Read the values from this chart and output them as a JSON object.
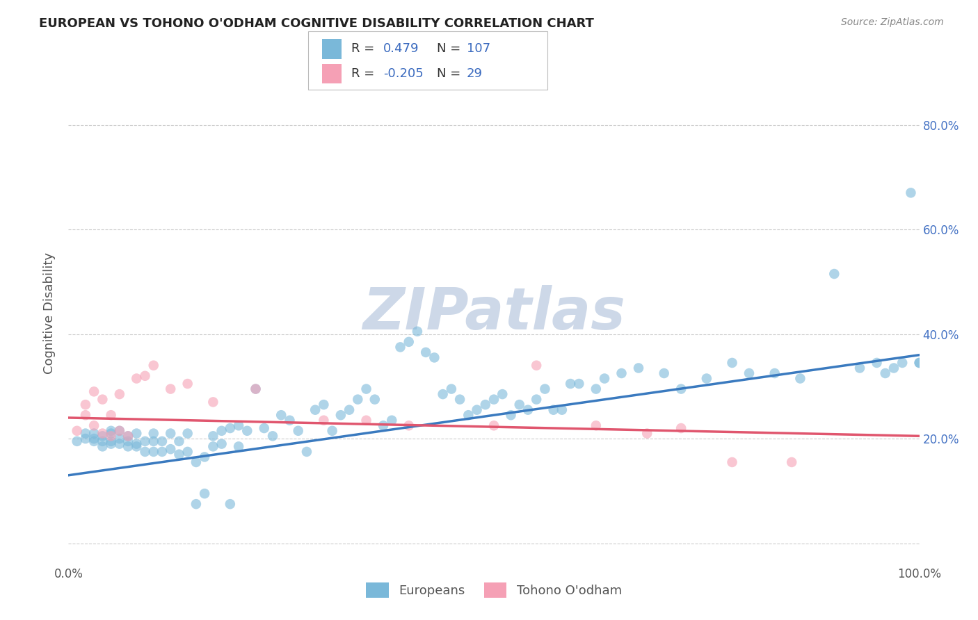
{
  "title": "EUROPEAN VS TOHONO O'ODHAM COGNITIVE DISABILITY CORRELATION CHART",
  "source": "Source: ZipAtlas.com",
  "ylabel": "Cognitive Disability",
  "xlim": [
    0,
    1.0
  ],
  "ylim": [
    -0.04,
    0.92
  ],
  "ytick_vals": [
    0.0,
    0.2,
    0.4,
    0.6,
    0.8
  ],
  "xtick_vals": [
    0.0,
    1.0
  ],
  "xtick_labels": [
    "0.0%",
    "100.0%"
  ],
  "ytick_labels_right": [
    "",
    "20.0%",
    "40.0%",
    "60.0%",
    "80.0%"
  ],
  "legend1_R": "0.479",
  "legend1_N": "107",
  "legend2_R": "-0.205",
  "legend2_N": "29",
  "blue_color": "#7ab8d9",
  "pink_color": "#f5a0b5",
  "blue_line_color": "#3a7abf",
  "pink_line_color": "#e0566e",
  "grid_color": "#cccccc",
  "background_color": "#ffffff",
  "watermark_text": "ZIPatlas",
  "watermark_color": "#cdd8e8",
  "title_color": "#222222",
  "axis_label_color": "#555555",
  "tick_label_color": "#4472c4",
  "legend_R_color": "#3a6abf",
  "legend_text_color": "#333333",
  "blue_scatter_x": [
    0.01,
    0.02,
    0.02,
    0.03,
    0.03,
    0.03,
    0.04,
    0.04,
    0.04,
    0.05,
    0.05,
    0.05,
    0.05,
    0.06,
    0.06,
    0.06,
    0.07,
    0.07,
    0.07,
    0.08,
    0.08,
    0.08,
    0.09,
    0.09,
    0.1,
    0.1,
    0.1,
    0.11,
    0.11,
    0.12,
    0.12,
    0.13,
    0.13,
    0.14,
    0.14,
    0.15,
    0.15,
    0.16,
    0.16,
    0.17,
    0.17,
    0.18,
    0.18,
    0.19,
    0.19,
    0.2,
    0.2,
    0.21,
    0.22,
    0.23,
    0.24,
    0.25,
    0.26,
    0.27,
    0.28,
    0.29,
    0.3,
    0.31,
    0.32,
    0.33,
    0.34,
    0.35,
    0.36,
    0.37,
    0.38,
    0.39,
    0.4,
    0.41,
    0.42,
    0.43,
    0.44,
    0.45,
    0.46,
    0.47,
    0.48,
    0.49,
    0.5,
    0.51,
    0.52,
    0.53,
    0.54,
    0.55,
    0.56,
    0.57,
    0.58,
    0.59,
    0.6,
    0.62,
    0.63,
    0.65,
    0.67,
    0.7,
    0.72,
    0.75,
    0.78,
    0.8,
    0.83,
    0.86,
    0.9,
    0.93,
    0.95,
    0.96,
    0.97,
    0.98,
    0.99,
    1.0,
    1.0
  ],
  "blue_scatter_y": [
    0.195,
    0.2,
    0.21,
    0.195,
    0.2,
    0.21,
    0.185,
    0.195,
    0.205,
    0.19,
    0.195,
    0.21,
    0.215,
    0.19,
    0.2,
    0.215,
    0.185,
    0.195,
    0.205,
    0.185,
    0.19,
    0.21,
    0.175,
    0.195,
    0.175,
    0.195,
    0.21,
    0.175,
    0.195,
    0.18,
    0.21,
    0.17,
    0.195,
    0.175,
    0.21,
    0.075,
    0.155,
    0.095,
    0.165,
    0.185,
    0.205,
    0.19,
    0.215,
    0.075,
    0.22,
    0.185,
    0.225,
    0.215,
    0.295,
    0.22,
    0.205,
    0.245,
    0.235,
    0.215,
    0.175,
    0.255,
    0.265,
    0.215,
    0.245,
    0.255,
    0.275,
    0.295,
    0.275,
    0.225,
    0.235,
    0.375,
    0.385,
    0.405,
    0.365,
    0.355,
    0.285,
    0.295,
    0.275,
    0.245,
    0.255,
    0.265,
    0.275,
    0.285,
    0.245,
    0.265,
    0.255,
    0.275,
    0.295,
    0.255,
    0.255,
    0.305,
    0.305,
    0.295,
    0.315,
    0.325,
    0.335,
    0.325,
    0.295,
    0.315,
    0.345,
    0.325,
    0.325,
    0.315,
    0.515,
    0.335,
    0.345,
    0.325,
    0.335,
    0.345,
    0.67,
    0.345,
    0.345
  ],
  "pink_scatter_x": [
    0.01,
    0.02,
    0.02,
    0.03,
    0.03,
    0.04,
    0.04,
    0.05,
    0.05,
    0.06,
    0.06,
    0.07,
    0.08,
    0.09,
    0.1,
    0.12,
    0.14,
    0.17,
    0.22,
    0.3,
    0.35,
    0.4,
    0.5,
    0.55,
    0.62,
    0.68,
    0.72,
    0.78,
    0.85
  ],
  "pink_scatter_y": [
    0.215,
    0.245,
    0.265,
    0.225,
    0.29,
    0.21,
    0.275,
    0.205,
    0.245,
    0.215,
    0.285,
    0.205,
    0.315,
    0.32,
    0.34,
    0.295,
    0.305,
    0.27,
    0.295,
    0.235,
    0.235,
    0.225,
    0.225,
    0.34,
    0.225,
    0.21,
    0.22,
    0.155,
    0.155
  ],
  "blue_trend_x": [
    0.0,
    1.0
  ],
  "blue_trend_y": [
    0.13,
    0.36
  ],
  "pink_trend_x": [
    0.0,
    1.0
  ],
  "pink_trend_y": [
    0.24,
    0.205
  ]
}
